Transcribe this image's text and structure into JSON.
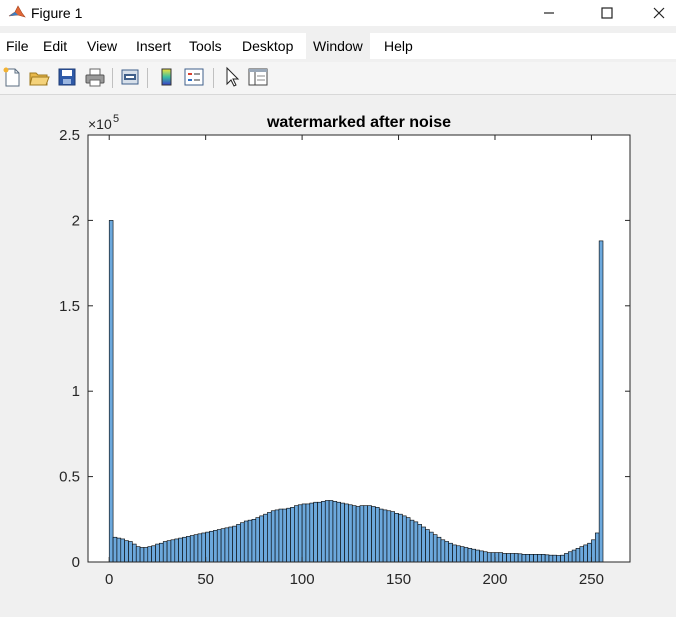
{
  "window": {
    "title": "Figure 1",
    "controls": [
      "—",
      "☐",
      "✕"
    ]
  },
  "menu": [
    {
      "label": "File"
    },
    {
      "label": "Edit"
    },
    {
      "label": "View"
    },
    {
      "label": "Insert"
    },
    {
      "label": "Tools"
    },
    {
      "label": "Desktop"
    },
    {
      "label": "Window"
    },
    {
      "label": "Help"
    }
  ],
  "toolbar": {
    "icons": [
      "new-figure-icon",
      "open-file-icon",
      "save-icon",
      "print-icon",
      "print-preview-icon",
      "colorbar-icon",
      "legend-icon",
      "select-arrow-icon",
      "property-inspector-icon"
    ]
  },
  "colors": {
    "bar_fill": "#6ca8dc",
    "bar_edge": "#000000",
    "axes_bg": "#ffffff",
    "figure_bg": "#f0f0f0"
  },
  "chart_data": {
    "type": "bar",
    "title": "watermarked after noise",
    "xlabel": "",
    "ylabel": "",
    "exponent_label": "×10",
    "exponent_power": "5",
    "xlim": [
      -11,
      270
    ],
    "ylim": [
      0,
      2.5
    ],
    "y_scale_factor": 100000,
    "xticks": [
      0,
      50,
      100,
      150,
      200,
      250
    ],
    "yticks": [
      0,
      0.5,
      1,
      1.5,
      2,
      2.5
    ],
    "ytick_labels": [
      "0",
      "0.5",
      "1",
      "1.5",
      "2",
      "2.5"
    ],
    "grid": false,
    "bin_width": 2,
    "bin_centers": [
      1,
      3,
      5,
      7,
      9,
      11,
      13,
      15,
      17,
      19,
      21,
      23,
      25,
      27,
      29,
      31,
      33,
      35,
      37,
      39,
      41,
      43,
      45,
      47,
      49,
      51,
      53,
      55,
      57,
      59,
      61,
      63,
      65,
      67,
      69,
      71,
      73,
      75,
      77,
      79,
      81,
      83,
      85,
      87,
      89,
      91,
      93,
      95,
      97,
      99,
      101,
      103,
      105,
      107,
      109,
      111,
      113,
      115,
      117,
      119,
      121,
      123,
      125,
      127,
      129,
      131,
      133,
      135,
      137,
      139,
      141,
      143,
      145,
      147,
      149,
      151,
      153,
      155,
      157,
      159,
      161,
      163,
      165,
      167,
      169,
      171,
      173,
      175,
      177,
      179,
      181,
      183,
      185,
      187,
      189,
      191,
      193,
      195,
      197,
      199,
      201,
      203,
      205,
      207,
      209,
      211,
      213,
      215,
      217,
      219,
      221,
      223,
      225,
      227,
      229,
      231,
      233,
      235,
      237,
      239,
      241,
      243,
      245,
      247,
      249,
      251,
      253,
      255
    ],
    "values": [
      2.0,
      0.145,
      0.14,
      0.135,
      0.125,
      0.12,
      0.105,
      0.09,
      0.085,
      0.085,
      0.09,
      0.095,
      0.105,
      0.11,
      0.12,
      0.125,
      0.13,
      0.135,
      0.14,
      0.145,
      0.15,
      0.155,
      0.16,
      0.165,
      0.17,
      0.175,
      0.18,
      0.185,
      0.19,
      0.195,
      0.2,
      0.205,
      0.21,
      0.22,
      0.23,
      0.24,
      0.245,
      0.25,
      0.26,
      0.27,
      0.28,
      0.29,
      0.3,
      0.305,
      0.31,
      0.31,
      0.315,
      0.32,
      0.33,
      0.335,
      0.34,
      0.34,
      0.345,
      0.35,
      0.35,
      0.355,
      0.36,
      0.36,
      0.355,
      0.35,
      0.345,
      0.34,
      0.335,
      0.33,
      0.325,
      0.33,
      0.33,
      0.33,
      0.325,
      0.32,
      0.31,
      0.305,
      0.3,
      0.295,
      0.285,
      0.28,
      0.27,
      0.26,
      0.245,
      0.235,
      0.22,
      0.205,
      0.19,
      0.175,
      0.16,
      0.145,
      0.13,
      0.12,
      0.11,
      0.1,
      0.095,
      0.09,
      0.085,
      0.08,
      0.075,
      0.07,
      0.065,
      0.06,
      0.055,
      0.055,
      0.055,
      0.055,
      0.05,
      0.05,
      0.05,
      0.05,
      0.048,
      0.045,
      0.045,
      0.045,
      0.045,
      0.045,
      0.045,
      0.042,
      0.04,
      0.04,
      0.038,
      0.04,
      0.05,
      0.06,
      0.07,
      0.08,
      0.09,
      0.1,
      0.11,
      0.13,
      0.17,
      1.88
    ]
  }
}
